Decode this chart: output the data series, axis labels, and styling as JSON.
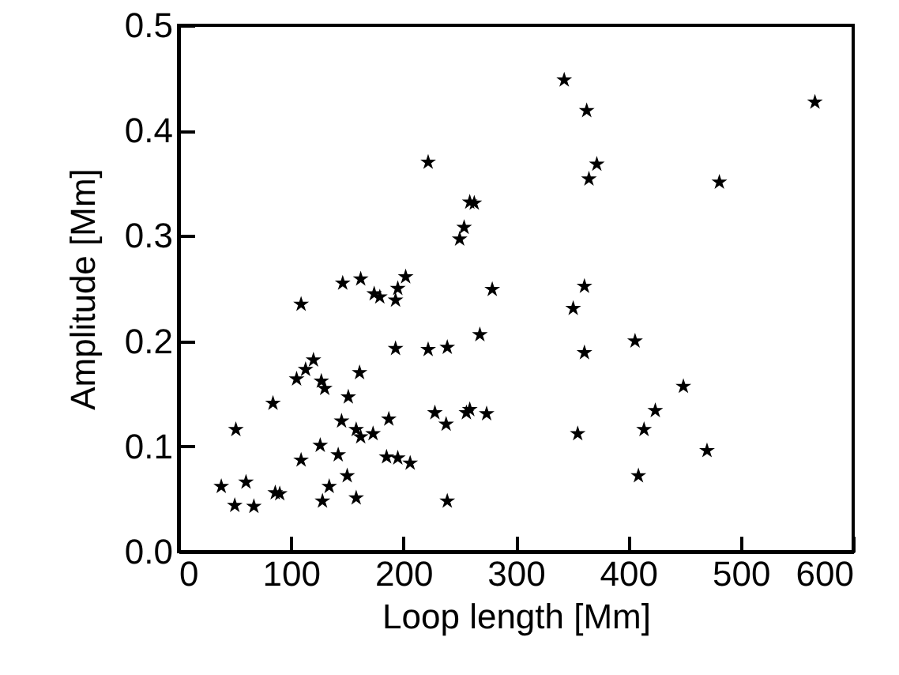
{
  "chart_data": {
    "type": "scatter",
    "xlabel": "Loop length [Mm]",
    "ylabel": "Amplitude [Mm]",
    "xlim": [
      0,
      600
    ],
    "xticks": [
      0,
      100,
      200,
      300,
      400,
      500,
      600
    ],
    "ylim": [
      0,
      0.5
    ],
    "yticks": [
      {
        "value": 0,
        "label": "0.0"
      },
      0.1,
      0.2,
      0.3,
      0.4,
      0.5
    ],
    "marker": "star",
    "grid": false,
    "series": [
      {
        "color": "#000000",
        "x": [
          343,
          363,
          566,
          372,
          365,
          481,
          263,
          279,
          361,
          222,
          259,
          254,
          250,
          146,
          162,
          174,
          179,
          193,
          195,
          202,
          109,
          193,
          222,
          239,
          268,
          120,
          113,
          105,
          127,
          130,
          161,
          151,
          84,
          51,
          145,
          158,
          162,
          173,
          187,
          228,
          238,
          256,
          259,
          274,
          126,
          109,
          142,
          185,
          195,
          206,
          150,
          134,
          38,
          60,
          50,
          67,
          86,
          90,
          128,
          158,
          239,
          351,
          361,
          406,
          449,
          424,
          414,
          355,
          470,
          409
        ],
        "values": [
          0.448,
          0.419,
          0.427,
          0.368,
          0.354,
          0.351,
          0.331,
          0.249,
          0.252,
          0.37,
          0.332,
          0.308,
          0.297,
          0.255,
          0.259,
          0.245,
          0.242,
          0.239,
          0.25,
          0.261,
          0.235,
          0.193,
          0.192,
          0.194,
          0.206,
          0.182,
          0.173,
          0.164,
          0.162,
          0.155,
          0.17,
          0.147,
          0.141,
          0.116,
          0.124,
          0.116,
          0.109,
          0.112,
          0.126,
          0.132,
          0.121,
          0.132,
          0.135,
          0.131,
          0.101,
          0.087,
          0.092,
          0.09,
          0.089,
          0.084,
          0.072,
          0.062,
          0.062,
          0.066,
          0.044,
          0.043,
          0.056,
          0.055,
          0.048,
          0.051,
          0.048,
          0.231,
          0.189,
          0.2,
          0.157,
          0.134,
          0.116,
          0.112,
          0.096,
          0.072
        ]
      }
    ]
  }
}
